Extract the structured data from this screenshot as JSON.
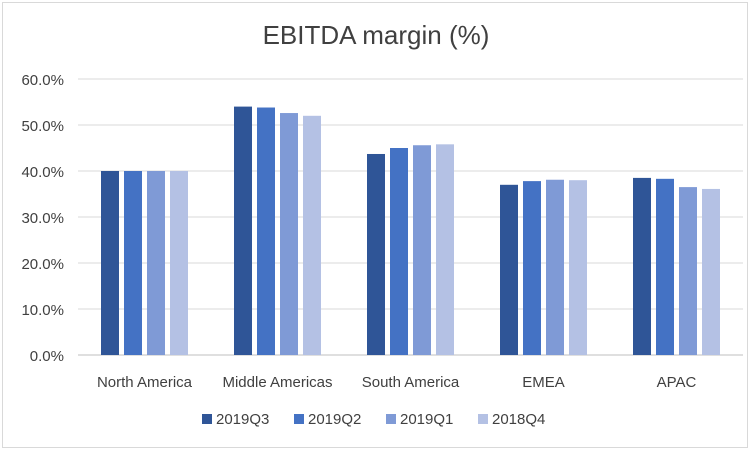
{
  "chart_data": {
    "type": "bar",
    "title": "EBITDA margin (%)",
    "xlabel": "",
    "ylabel": "",
    "ylim": [
      0,
      60
    ],
    "yticks": [
      "0.0%",
      "10.0%",
      "20.0%",
      "30.0%",
      "40.0%",
      "50.0%",
      "60.0%"
    ],
    "categories": [
      "North America",
      "Middle Americas",
      "South America",
      "EMEA",
      "APAC"
    ],
    "series": [
      {
        "name": "2019Q3",
        "color": "#2f5597",
        "values": [
          40.0,
          54.0,
          43.7,
          37.0,
          38.5
        ]
      },
      {
        "name": "2019Q2",
        "color": "#4472c4",
        "values": [
          40.0,
          53.8,
          45.0,
          37.8,
          38.3
        ]
      },
      {
        "name": "2019Q1",
        "color": "#7f9ad6",
        "values": [
          40.0,
          52.6,
          45.6,
          38.1,
          36.5
        ]
      },
      {
        "name": "2018Q4",
        "color": "#b4c1e4",
        "values": [
          40.0,
          52.0,
          45.8,
          38.0,
          36.1
        ]
      }
    ],
    "grid": true,
    "legend_position": "bottom"
  }
}
